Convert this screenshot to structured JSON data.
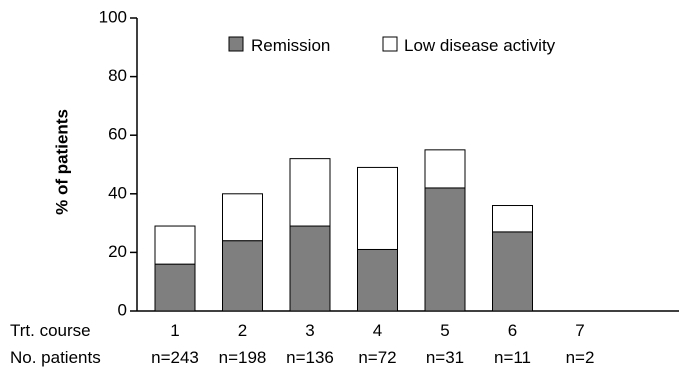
{
  "chart_data": {
    "type": "bar",
    "stacked": true,
    "categories": [
      "1",
      "2",
      "3",
      "4",
      "5",
      "6",
      "7"
    ],
    "sample_sizes": [
      "n=243",
      "n=198",
      "n=136",
      "n=72",
      "n=31",
      "n=11",
      "n=2"
    ],
    "series": [
      {
        "name": "Remission",
        "values": [
          16,
          24,
          29,
          21,
          42,
          27,
          0
        ],
        "color": "#7f7f7f"
      },
      {
        "name": "Low disease activity",
        "values": [
          13,
          16,
          23,
          28,
          13,
          9,
          0
        ],
        "color": "#ffffff"
      }
    ],
    "ylabel": "% of patients",
    "ylim": [
      0,
      100
    ],
    "yticks": [
      0,
      20,
      40,
      60,
      80,
      100
    ],
    "row_labels": {
      "course": "Trt. course",
      "patients": "No. patients"
    },
    "grid": false,
    "legend_placement": "top-right"
  }
}
